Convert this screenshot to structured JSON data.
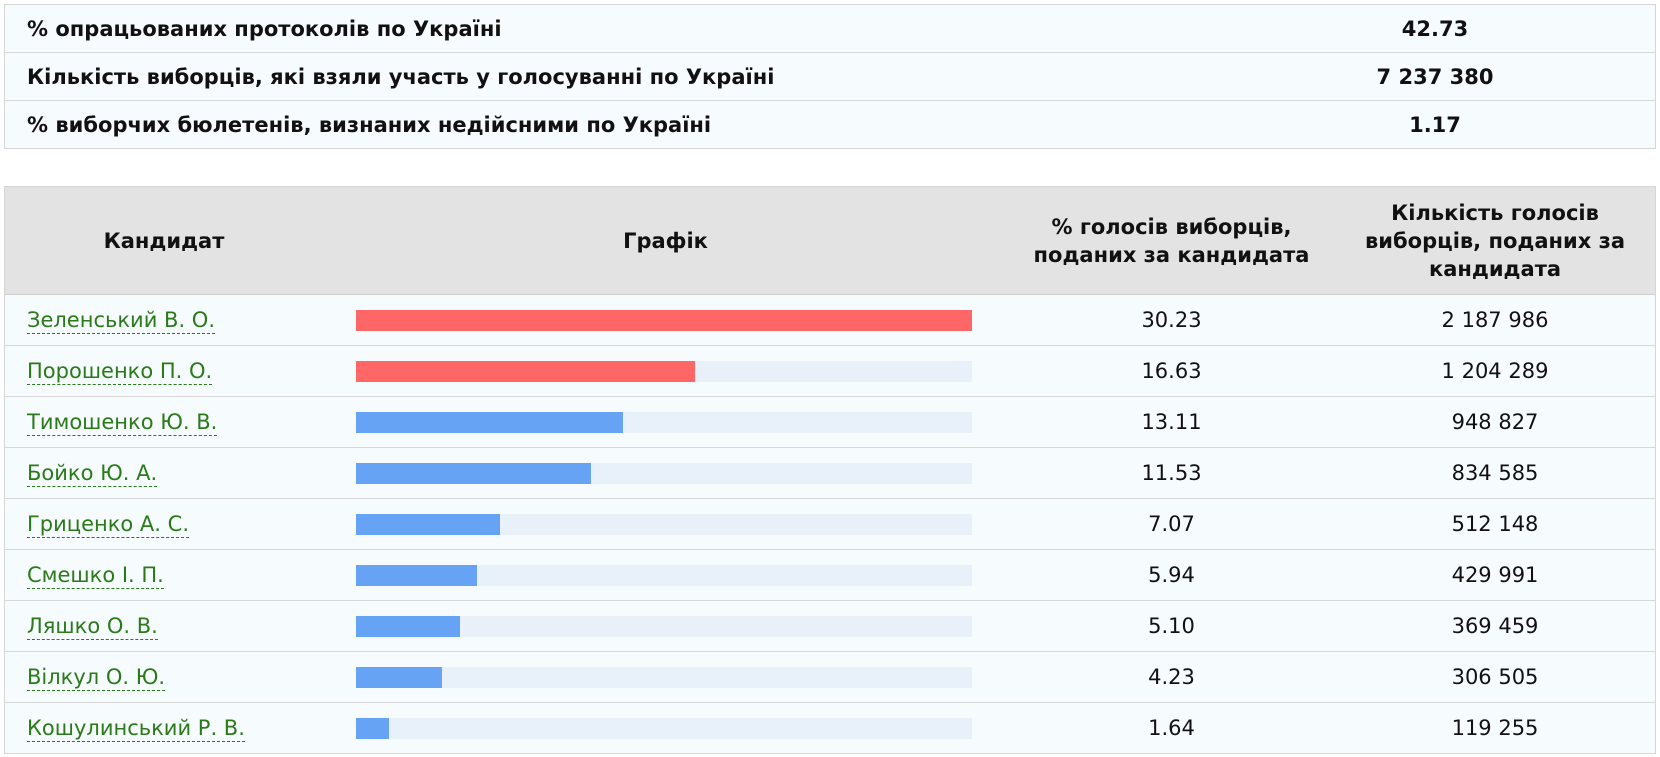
{
  "summary": [
    {
      "label": "% опрацьованих протоколів по Україні",
      "value": "42.73"
    },
    {
      "label": "Кількість виборців, які взяли участь у голосуванні по Україні",
      "value": "7 237 380"
    },
    {
      "label": "% виборчих бюлетенів, визнаних недійсними по Україні",
      "value": "1.17"
    }
  ],
  "table": {
    "headers": {
      "candidate": "Кандидат",
      "chart": "Графік",
      "percent": "% голосів виборців, поданих за кандидата",
      "votes": "Кількість голосів виборців, поданих за кандидата"
    },
    "max_percent": 30.23,
    "colors": {
      "top": "#ff6666",
      "other": "#66a3f5",
      "track": "#e8f0fa",
      "link": "#2a7a1a"
    },
    "rows": [
      {
        "name": "Зеленський В. О.",
        "percent": "30.23",
        "votes": "2 187 986",
        "highlight": true
      },
      {
        "name": "Порошенко П. О.",
        "percent": "16.63",
        "votes": "1 204 289",
        "highlight": true
      },
      {
        "name": "Тимошенко Ю. В.",
        "percent": "13.11",
        "votes": "948 827",
        "highlight": false
      },
      {
        "name": "Бойко Ю. А.",
        "percent": "11.53",
        "votes": "834 585",
        "highlight": false
      },
      {
        "name": "Гриценко А. С.",
        "percent": "7.07",
        "votes": "512 148",
        "highlight": false
      },
      {
        "name": "Смешко І. П.",
        "percent": "5.94",
        "votes": "429 991",
        "highlight": false
      },
      {
        "name": "Ляшко О. В.",
        "percent": "5.10",
        "votes": "369 459",
        "highlight": false
      },
      {
        "name": "Вілкул О. Ю.",
        "percent": "4.23",
        "votes": "306 505",
        "highlight": false
      },
      {
        "name": "Кошулинський Р. В.",
        "percent": "1.64",
        "votes": "119 255",
        "highlight": false
      }
    ]
  }
}
